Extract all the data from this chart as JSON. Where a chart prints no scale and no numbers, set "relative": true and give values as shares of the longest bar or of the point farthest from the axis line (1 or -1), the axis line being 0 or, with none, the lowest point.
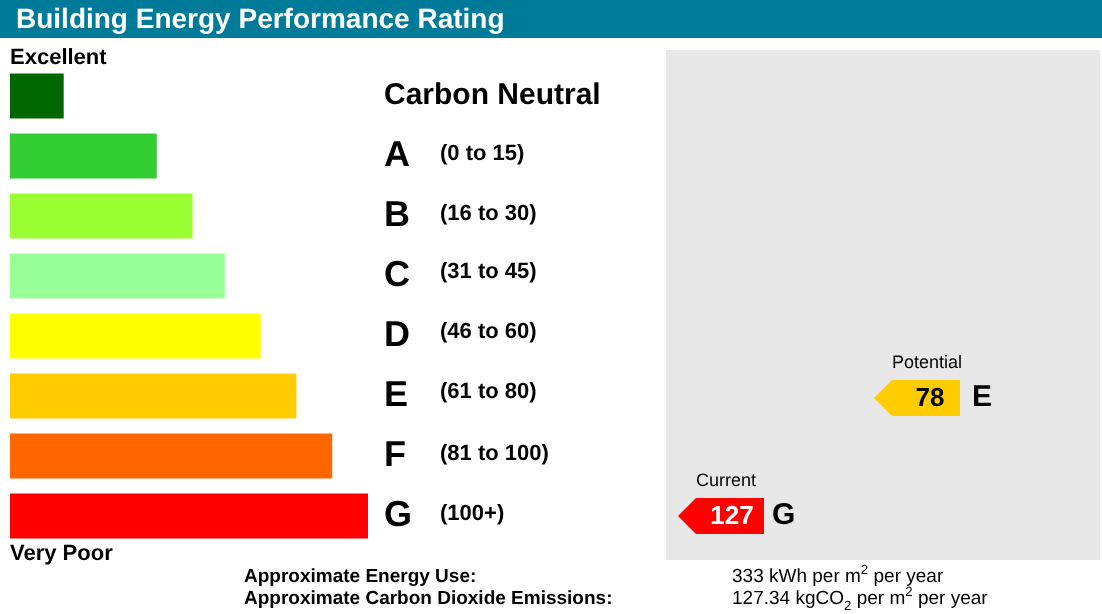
{
  "chart_data": {
    "type": "bar",
    "orientation": "horizontal",
    "relative": true,
    "title": "Building Energy Performance Rating",
    "categories": [
      "Carbon Neutral",
      "A",
      "B",
      "C",
      "D",
      "E",
      "F",
      "G"
    ],
    "values": [
      0.15,
      0.41,
      0.51,
      0.6,
      0.7,
      0.8,
      0.9,
      1
    ],
    "colors": [
      "#006600",
      "#33cc33",
      "#99ff33",
      "#99ff99",
      "#ffff00",
      "#ffcc00",
      "#ff6600",
      "#ff0000"
    ],
    "annotations": [
      "Excellent",
      "(0 to 15)",
      "(16 to 30)",
      "(31 to 45)",
      "(46 to 60)",
      "(61 to 80)",
      "(81 to 100)",
      "(100+)",
      "Very Poor",
      "Potential",
      "78",
      "E",
      "Current",
      "127",
      "G",
      "Approximate Energy Use:",
      "333 kWh per m$^{2}$ per year",
      "Approximate Carbon Dioxide Emissions:",
      "127.34 kgCO$_{2}$ per m$^{2}$ per year"
    ]
  }
}
